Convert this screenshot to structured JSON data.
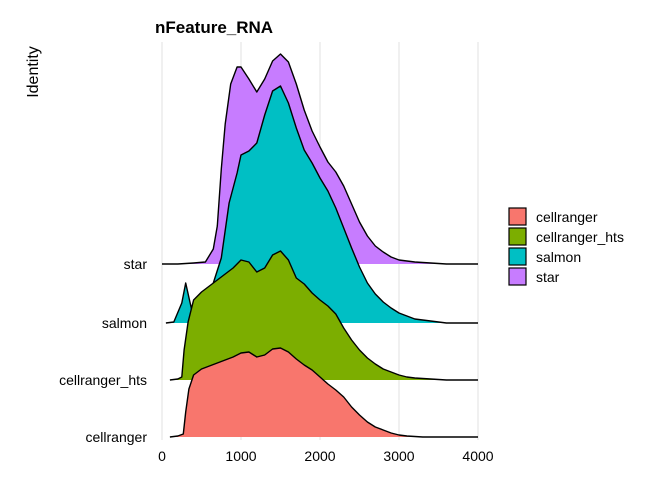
{
  "chart_data": {
    "type": "ridgeline",
    "title": "nFeature_RNA",
    "xlabel": "",
    "ylabel": "Identity",
    "xlim": [
      0,
      4000
    ],
    "x_ticks": [
      0,
      1000,
      2000,
      3000,
      4000
    ],
    "grid": "vertical major",
    "legend": "right",
    "categories": [
      "cellranger",
      "cellranger_hts",
      "salmon",
      "star"
    ],
    "series": [
      {
        "name": "cellranger",
        "color": "#F8766D",
        "density": [
          [
            100,
            0.0
          ],
          [
            200,
            0.01
          ],
          [
            270,
            0.03
          ],
          [
            300,
            0.25
          ],
          [
            340,
            0.48
          ],
          [
            400,
            0.62
          ],
          [
            500,
            0.68
          ],
          [
            700,
            0.74
          ],
          [
            900,
            0.8
          ],
          [
            1000,
            0.84
          ],
          [
            1100,
            0.85
          ],
          [
            1200,
            0.8
          ],
          [
            1300,
            0.82
          ],
          [
            1400,
            0.88
          ],
          [
            1500,
            0.89
          ],
          [
            1600,
            0.85
          ],
          [
            1700,
            0.78
          ],
          [
            1800,
            0.72
          ],
          [
            1900,
            0.67
          ],
          [
            2000,
            0.6
          ],
          [
            2100,
            0.53
          ],
          [
            2200,
            0.47
          ],
          [
            2300,
            0.4
          ],
          [
            2400,
            0.3
          ],
          [
            2500,
            0.22
          ],
          [
            2600,
            0.15
          ],
          [
            2700,
            0.1
          ],
          [
            2800,
            0.07
          ],
          [
            2900,
            0.04
          ],
          [
            3000,
            0.02
          ],
          [
            3100,
            0.01
          ],
          [
            3300,
            0.0
          ],
          [
            3500,
            0.0
          ],
          [
            4000,
            0.0
          ]
        ]
      },
      {
        "name": "cellranger_hts",
        "color": "#7CAE00",
        "density": [
          [
            100,
            0.0
          ],
          [
            200,
            0.01
          ],
          [
            250,
            0.03
          ],
          [
            280,
            0.3
          ],
          [
            330,
            0.58
          ],
          [
            400,
            0.8
          ],
          [
            500,
            0.88
          ],
          [
            700,
            1.0
          ],
          [
            900,
            1.12
          ],
          [
            1000,
            1.2
          ],
          [
            1100,
            1.18
          ],
          [
            1200,
            1.08
          ],
          [
            1300,
            1.12
          ],
          [
            1400,
            1.25
          ],
          [
            1500,
            1.29
          ],
          [
            1600,
            1.2
          ],
          [
            1700,
            1.02
          ],
          [
            1800,
            0.96
          ],
          [
            1900,
            0.87
          ],
          [
            2000,
            0.8
          ],
          [
            2100,
            0.74
          ],
          [
            2200,
            0.66
          ],
          [
            2300,
            0.52
          ],
          [
            2400,
            0.4
          ],
          [
            2500,
            0.3
          ],
          [
            2600,
            0.22
          ],
          [
            2700,
            0.16
          ],
          [
            2800,
            0.11
          ],
          [
            2900,
            0.08
          ],
          [
            3000,
            0.05
          ],
          [
            3100,
            0.03
          ],
          [
            3200,
            0.02
          ],
          [
            3400,
            0.01
          ],
          [
            3600,
            0.0
          ],
          [
            4000,
            0.0
          ]
        ]
      },
      {
        "name": "salmon",
        "color": "#00BFC4",
        "density": [
          [
            50,
            0.0
          ],
          [
            150,
            0.01
          ],
          [
            250,
            0.2
          ],
          [
            300,
            0.4
          ],
          [
            350,
            0.22
          ],
          [
            400,
            0.05
          ],
          [
            470,
            0.02
          ],
          [
            550,
            0.18
          ],
          [
            650,
            0.4
          ],
          [
            750,
            0.65
          ],
          [
            850,
            1.2
          ],
          [
            950,
            1.5
          ],
          [
            1000,
            1.68
          ],
          [
            1100,
            1.72
          ],
          [
            1200,
            1.8
          ],
          [
            1300,
            2.08
          ],
          [
            1400,
            2.32
          ],
          [
            1500,
            2.37
          ],
          [
            1600,
            2.2
          ],
          [
            1700,
            1.95
          ],
          [
            1800,
            1.73
          ],
          [
            1900,
            1.6
          ],
          [
            2000,
            1.45
          ],
          [
            2100,
            1.32
          ],
          [
            2200,
            1.15
          ],
          [
            2300,
            0.95
          ],
          [
            2400,
            0.75
          ],
          [
            2500,
            0.56
          ],
          [
            2600,
            0.4
          ],
          [
            2700,
            0.29
          ],
          [
            2800,
            0.21
          ],
          [
            2900,
            0.15
          ],
          [
            3000,
            0.1
          ],
          [
            3100,
            0.07
          ],
          [
            3200,
            0.04
          ],
          [
            3400,
            0.02
          ],
          [
            3600,
            0.0
          ],
          [
            4000,
            0.0
          ]
        ]
      },
      {
        "name": "star",
        "color": "#C77CFF",
        "density": [
          [
            0,
            0.0
          ],
          [
            200,
            0.0
          ],
          [
            400,
            0.01
          ],
          [
            550,
            0.02
          ],
          [
            650,
            0.15
          ],
          [
            700,
            0.38
          ],
          [
            750,
            0.95
          ],
          [
            800,
            1.4
          ],
          [
            870,
            1.8
          ],
          [
            950,
            1.97
          ],
          [
            1000,
            1.97
          ],
          [
            1100,
            1.85
          ],
          [
            1200,
            1.72
          ],
          [
            1300,
            1.85
          ],
          [
            1400,
            2.03
          ],
          [
            1500,
            2.1
          ],
          [
            1600,
            2.02
          ],
          [
            1700,
            1.8
          ],
          [
            1800,
            1.54
          ],
          [
            1900,
            1.33
          ],
          [
            2000,
            1.17
          ],
          [
            2100,
            1.02
          ],
          [
            2200,
            0.92
          ],
          [
            2300,
            0.78
          ],
          [
            2400,
            0.6
          ],
          [
            2500,
            0.42
          ],
          [
            2600,
            0.28
          ],
          [
            2700,
            0.18
          ],
          [
            2800,
            0.12
          ],
          [
            2900,
            0.07
          ],
          [
            3000,
            0.04
          ],
          [
            3200,
            0.02
          ],
          [
            3400,
            0.01
          ],
          [
            3600,
            0.0
          ],
          [
            4000,
            0.0
          ]
        ]
      }
    ]
  }
}
